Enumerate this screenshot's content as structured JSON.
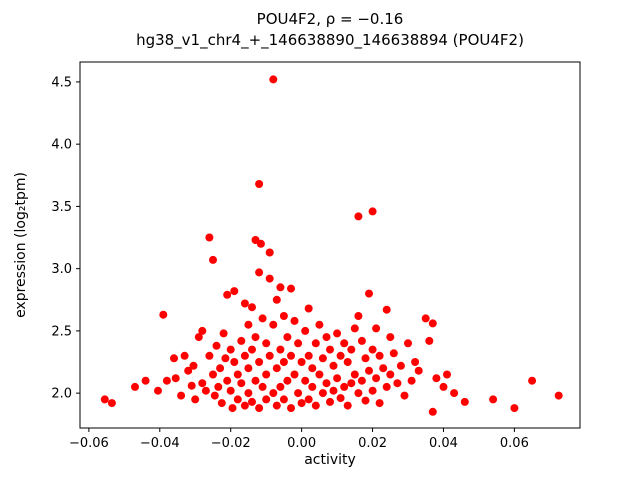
{
  "figure": {
    "background": "#ffffff"
  },
  "chart_data": {
    "type": "scatter",
    "title": "POU4F2, ρ = −0.16",
    "subtitle": "hg38_v1_chr4_+_146638890_146638894 (POU4F2)",
    "xlabel": "activity",
    "ylabel": "expression (log₂tpm)",
    "marker_color": "#ff0000",
    "marker_radius_px": 4,
    "grid": false,
    "legend": "none",
    "xlim": [
      -0.0625,
      0.0785
    ],
    "ylim": [
      1.72,
      4.66
    ],
    "xticks": [
      {
        "v": -0.06,
        "label": "−0.06"
      },
      {
        "v": -0.04,
        "label": "−0.04"
      },
      {
        "v": -0.02,
        "label": "−0.02"
      },
      {
        "v": 0.0,
        "label": "0.00"
      },
      {
        "v": 0.02,
        "label": "0.02"
      },
      {
        "v": 0.04,
        "label": "0.04"
      },
      {
        "v": 0.06,
        "label": "0.06"
      }
    ],
    "yticks": [
      {
        "v": 2.0,
        "label": "2.0"
      },
      {
        "v": 2.5,
        "label": "2.5"
      },
      {
        "v": 3.0,
        "label": "3.0"
      },
      {
        "v": 3.5,
        "label": "3.5"
      },
      {
        "v": 4.0,
        "label": "4.0"
      },
      {
        "v": 4.5,
        "label": "4.5"
      }
    ],
    "points": [
      [
        -0.0555,
        1.95
      ],
      [
        -0.0535,
        1.92
      ],
      [
        -0.047,
        2.05
      ],
      [
        -0.044,
        2.1
      ],
      [
        -0.0405,
        2.02
      ],
      [
        -0.039,
        2.63
      ],
      [
        -0.038,
        2.1
      ],
      [
        -0.036,
        2.28
      ],
      [
        -0.0355,
        2.12
      ],
      [
        -0.034,
        1.98
      ],
      [
        -0.033,
        2.3
      ],
      [
        -0.032,
        2.18
      ],
      [
        -0.031,
        2.06
      ],
      [
        -0.0305,
        2.22
      ],
      [
        -0.03,
        1.95
      ],
      [
        -0.029,
        2.45
      ],
      [
        -0.028,
        2.5
      ],
      [
        -0.028,
        2.08
      ],
      [
        -0.027,
        2.02
      ],
      [
        -0.026,
        3.25
      ],
      [
        -0.026,
        2.3
      ],
      [
        -0.025,
        3.07
      ],
      [
        -0.025,
        2.15
      ],
      [
        -0.0245,
        1.98
      ],
      [
        -0.024,
        2.38
      ],
      [
        -0.0235,
        2.05
      ],
      [
        -0.023,
        2.2
      ],
      [
        -0.0225,
        1.92
      ],
      [
        -0.022,
        2.48
      ],
      [
        -0.0215,
        2.28
      ],
      [
        -0.021,
        2.79
      ],
      [
        -0.021,
        2.1
      ],
      [
        -0.02,
        2.35
      ],
      [
        -0.02,
        2.02
      ],
      [
        -0.0195,
        1.88
      ],
      [
        -0.019,
        2.82
      ],
      [
        -0.019,
        2.25
      ],
      [
        -0.018,
        2.15
      ],
      [
        -0.018,
        1.95
      ],
      [
        -0.017,
        2.42
      ],
      [
        -0.017,
        2.08
      ],
      [
        -0.016,
        2.72
      ],
      [
        -0.016,
        2.3
      ],
      [
        -0.016,
        1.9
      ],
      [
        -0.015,
        2.55
      ],
      [
        -0.015,
        2.2
      ],
      [
        -0.015,
        2.0
      ],
      [
        -0.014,
        2.69
      ],
      [
        -0.014,
        2.35
      ],
      [
        -0.014,
        1.93
      ],
      [
        -0.013,
        3.23
      ],
      [
        -0.013,
        2.45
      ],
      [
        -0.013,
        2.1
      ],
      [
        -0.012,
        3.68
      ],
      [
        -0.012,
        2.97
      ],
      [
        -0.012,
        2.25
      ],
      [
        -0.012,
        1.88
      ],
      [
        -0.0115,
        3.2
      ],
      [
        -0.011,
        2.6
      ],
      [
        -0.011,
        2.05
      ],
      [
        -0.01,
        2.4
      ],
      [
        -0.01,
        2.15
      ],
      [
        -0.01,
        1.95
      ],
      [
        -0.009,
        3.13
      ],
      [
        -0.009,
        2.92
      ],
      [
        -0.009,
        2.3
      ],
      [
        -0.008,
        4.52
      ],
      [
        -0.008,
        2.55
      ],
      [
        -0.008,
        2.0
      ],
      [
        -0.007,
        2.75
      ],
      [
        -0.007,
        2.2
      ],
      [
        -0.007,
        1.9
      ],
      [
        -0.006,
        2.85
      ],
      [
        -0.006,
        2.35
      ],
      [
        -0.006,
        2.05
      ],
      [
        -0.005,
        2.62
      ],
      [
        -0.005,
        2.25
      ],
      [
        -0.005,
        1.95
      ],
      [
        -0.004,
        2.45
      ],
      [
        -0.004,
        2.1
      ],
      [
        -0.003,
        2.84
      ],
      [
        -0.003,
        2.3
      ],
      [
        -0.003,
        1.88
      ],
      [
        -0.002,
        2.58
      ],
      [
        -0.002,
        2.15
      ],
      [
        -0.001,
        2.4
      ],
      [
        -0.001,
        2.0
      ],
      [
        0.0,
        2.25
      ],
      [
        0.0,
        1.92
      ],
      [
        0.001,
        2.5
      ],
      [
        0.001,
        2.1
      ],
      [
        0.002,
        2.68
      ],
      [
        0.002,
        2.3
      ],
      [
        0.002,
        1.95
      ],
      [
        0.003,
        2.2
      ],
      [
        0.003,
        2.05
      ],
      [
        0.004,
        2.4
      ],
      [
        0.004,
        1.9
      ],
      [
        0.005,
        2.55
      ],
      [
        0.005,
        2.15
      ],
      [
        0.006,
        2.28
      ],
      [
        0.006,
        2.0
      ],
      [
        0.007,
        2.45
      ],
      [
        0.007,
        2.08
      ],
      [
        0.008,
        2.35
      ],
      [
        0.008,
        1.93
      ],
      [
        0.009,
        2.22
      ],
      [
        0.009,
        2.02
      ],
      [
        0.01,
        2.48
      ],
      [
        0.01,
        2.12
      ],
      [
        0.011,
        2.3
      ],
      [
        0.011,
        1.96
      ],
      [
        0.012,
        2.4
      ],
      [
        0.012,
        2.05
      ],
      [
        0.013,
        2.25
      ],
      [
        0.013,
        1.9
      ],
      [
        0.014,
        2.35
      ],
      [
        0.014,
        2.08
      ],
      [
        0.015,
        2.52
      ],
      [
        0.015,
        2.15
      ],
      [
        0.016,
        3.42
      ],
      [
        0.016,
        2.62
      ],
      [
        0.016,
        2.0
      ],
      [
        0.017,
        2.42
      ],
      [
        0.017,
        2.1
      ],
      [
        0.018,
        2.28
      ],
      [
        0.018,
        1.94
      ],
      [
        0.019,
        2.8
      ],
      [
        0.019,
        2.18
      ],
      [
        0.02,
        3.46
      ],
      [
        0.02,
        2.35
      ],
      [
        0.02,
        2.02
      ],
      [
        0.021,
        2.52
      ],
      [
        0.021,
        2.12
      ],
      [
        0.022,
        2.3
      ],
      [
        0.022,
        1.92
      ],
      [
        0.023,
        2.2
      ],
      [
        0.024,
        2.67
      ],
      [
        0.024,
        2.05
      ],
      [
        0.025,
        2.45
      ],
      [
        0.025,
        2.15
      ],
      [
        0.026,
        2.32
      ],
      [
        0.027,
        2.08
      ],
      [
        0.028,
        2.22
      ],
      [
        0.029,
        1.98
      ],
      [
        0.03,
        2.4
      ],
      [
        0.031,
        2.1
      ],
      [
        0.032,
        2.25
      ],
      [
        0.033,
        2.18
      ],
      [
        0.035,
        2.6
      ],
      [
        0.036,
        2.42
      ],
      [
        0.037,
        2.56
      ],
      [
        0.037,
        1.85
      ],
      [
        0.038,
        2.12
      ],
      [
        0.04,
        2.05
      ],
      [
        0.041,
        2.15
      ],
      [
        0.043,
        2.0
      ],
      [
        0.046,
        1.93
      ],
      [
        0.054,
        1.95
      ],
      [
        0.06,
        1.88
      ],
      [
        0.065,
        2.1
      ],
      [
        0.0725,
        1.98
      ]
    ]
  }
}
